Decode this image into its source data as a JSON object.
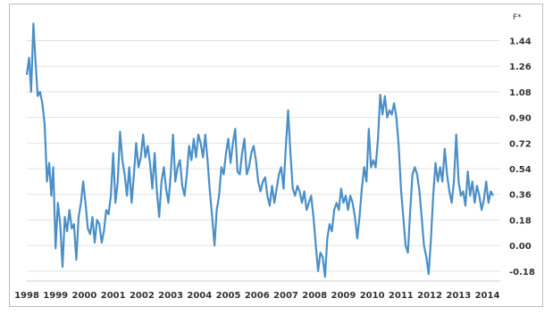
{
  "chart_data": {
    "type": "line",
    "ylabel": "F*",
    "ylim": [
      -0.25,
      1.6
    ],
    "yticks": [
      -0.18,
      0.0,
      0.18,
      0.36,
      0.54,
      0.72,
      0.9,
      1.08,
      1.26,
      1.44
    ],
    "ytick_labels": [
      "-0.18",
      "0.00",
      "0.18",
      "0.36",
      "0.54",
      "0.72",
      "0.90",
      "1.08",
      "1.26",
      "1.44"
    ],
    "xlim": [
      1998,
      2014.45
    ],
    "xtick_labels": [
      "1998",
      "1999",
      "2000",
      "2001",
      "2002",
      "2003",
      "2004",
      "2005",
      "2006",
      "2007",
      "2008",
      "2009",
      "2010",
      "2011",
      "2012",
      "2013",
      "2014"
    ],
    "grid": "horizontal",
    "line_color": "#4a8fc7",
    "series": [
      {
        "points": [
          [
            1998.0,
            1.2
          ],
          [
            1998.08,
            1.32
          ],
          [
            1998.15,
            1.08
          ],
          [
            1998.23,
            1.56
          ],
          [
            1998.3,
            1.3
          ],
          [
            1998.38,
            1.05
          ],
          [
            1998.46,
            1.08
          ],
          [
            1998.54,
            1.0
          ],
          [
            1998.62,
            0.85
          ],
          [
            1998.7,
            0.45
          ],
          [
            1998.78,
            0.58
          ],
          [
            1998.85,
            0.35
          ],
          [
            1998.92,
            0.55
          ],
          [
            1999.0,
            -0.02
          ],
          [
            1999.08,
            0.3
          ],
          [
            1999.16,
            0.15
          ],
          [
            1999.24,
            -0.15
          ],
          [
            1999.32,
            0.2
          ],
          [
            1999.4,
            0.1
          ],
          [
            1999.48,
            0.25
          ],
          [
            1999.56,
            0.12
          ],
          [
            1999.64,
            0.15
          ],
          [
            1999.72,
            -0.1
          ],
          [
            1999.8,
            0.2
          ],
          [
            1999.88,
            0.3
          ],
          [
            1999.96,
            0.45
          ],
          [
            2000.04,
            0.3
          ],
          [
            2000.12,
            0.12
          ],
          [
            2000.2,
            0.08
          ],
          [
            2000.28,
            0.2
          ],
          [
            2000.36,
            0.02
          ],
          [
            2000.44,
            0.18
          ],
          [
            2000.52,
            0.15
          ],
          [
            2000.6,
            0.02
          ],
          [
            2000.68,
            0.1
          ],
          [
            2000.76,
            0.25
          ],
          [
            2000.84,
            0.22
          ],
          [
            2000.92,
            0.35
          ],
          [
            2001.0,
            0.65
          ],
          [
            2001.08,
            0.3
          ],
          [
            2001.16,
            0.45
          ],
          [
            2001.24,
            0.8
          ],
          [
            2001.32,
            0.6
          ],
          [
            2001.4,
            0.5
          ],
          [
            2001.48,
            0.35
          ],
          [
            2001.56,
            0.55
          ],
          [
            2001.64,
            0.3
          ],
          [
            2001.72,
            0.5
          ],
          [
            2001.8,
            0.72
          ],
          [
            2001.88,
            0.55
          ],
          [
            2001.96,
            0.62
          ],
          [
            2002.04,
            0.78
          ],
          [
            2002.12,
            0.62
          ],
          [
            2002.2,
            0.7
          ],
          [
            2002.28,
            0.58
          ],
          [
            2002.36,
            0.4
          ],
          [
            2002.44,
            0.65
          ],
          [
            2002.52,
            0.38
          ],
          [
            2002.6,
            0.2
          ],
          [
            2002.68,
            0.45
          ],
          [
            2002.76,
            0.55
          ],
          [
            2002.84,
            0.4
          ],
          [
            2002.92,
            0.3
          ],
          [
            2003.0,
            0.5
          ],
          [
            2003.08,
            0.78
          ],
          [
            2003.16,
            0.45
          ],
          [
            2003.24,
            0.55
          ],
          [
            2003.32,
            0.6
          ],
          [
            2003.4,
            0.42
          ],
          [
            2003.48,
            0.35
          ],
          [
            2003.56,
            0.5
          ],
          [
            2003.64,
            0.7
          ],
          [
            2003.72,
            0.6
          ],
          [
            2003.8,
            0.75
          ],
          [
            2003.88,
            0.62
          ],
          [
            2003.96,
            0.78
          ],
          [
            2004.04,
            0.72
          ],
          [
            2004.12,
            0.62
          ],
          [
            2004.2,
            0.78
          ],
          [
            2004.28,
            0.6
          ],
          [
            2004.36,
            0.38
          ],
          [
            2004.44,
            0.2
          ],
          [
            2004.52,
            0.0
          ],
          [
            2004.6,
            0.25
          ],
          [
            2004.68,
            0.35
          ],
          [
            2004.76,
            0.55
          ],
          [
            2004.84,
            0.5
          ],
          [
            2004.92,
            0.65
          ],
          [
            2005.0,
            0.75
          ],
          [
            2005.08,
            0.58
          ],
          [
            2005.16,
            0.72
          ],
          [
            2005.24,
            0.82
          ],
          [
            2005.32,
            0.52
          ],
          [
            2005.4,
            0.5
          ],
          [
            2005.48,
            0.65
          ],
          [
            2005.56,
            0.75
          ],
          [
            2005.64,
            0.5
          ],
          [
            2005.72,
            0.55
          ],
          [
            2005.8,
            0.65
          ],
          [
            2005.88,
            0.7
          ],
          [
            2005.96,
            0.6
          ],
          [
            2006.04,
            0.45
          ],
          [
            2006.12,
            0.38
          ],
          [
            2006.2,
            0.45
          ],
          [
            2006.28,
            0.48
          ],
          [
            2006.36,
            0.35
          ],
          [
            2006.44,
            0.28
          ],
          [
            2006.52,
            0.42
          ],
          [
            2006.6,
            0.3
          ],
          [
            2006.68,
            0.4
          ],
          [
            2006.76,
            0.5
          ],
          [
            2006.84,
            0.55
          ],
          [
            2006.92,
            0.4
          ],
          [
            2007.0,
            0.7
          ],
          [
            2007.08,
            0.95
          ],
          [
            2007.16,
            0.65
          ],
          [
            2007.24,
            0.4
          ],
          [
            2007.32,
            0.35
          ],
          [
            2007.4,
            0.42
          ],
          [
            2007.48,
            0.38
          ],
          [
            2007.56,
            0.3
          ],
          [
            2007.64,
            0.38
          ],
          [
            2007.72,
            0.25
          ],
          [
            2007.8,
            0.3
          ],
          [
            2007.88,
            0.35
          ],
          [
            2007.96,
            0.2
          ],
          [
            2008.04,
            0.0
          ],
          [
            2008.12,
            -0.18
          ],
          [
            2008.2,
            -0.05
          ],
          [
            2008.28,
            -0.08
          ],
          [
            2008.36,
            -0.22
          ],
          [
            2008.44,
            0.05
          ],
          [
            2008.52,
            0.15
          ],
          [
            2008.6,
            0.1
          ],
          [
            2008.68,
            0.25
          ],
          [
            2008.76,
            0.3
          ],
          [
            2008.84,
            0.25
          ],
          [
            2008.92,
            0.4
          ],
          [
            2009.0,
            0.3
          ],
          [
            2009.08,
            0.35
          ],
          [
            2009.16,
            0.25
          ],
          [
            2009.24,
            0.35
          ],
          [
            2009.32,
            0.3
          ],
          [
            2009.4,
            0.2
          ],
          [
            2009.48,
            0.05
          ],
          [
            2009.56,
            0.2
          ],
          [
            2009.64,
            0.4
          ],
          [
            2009.72,
            0.55
          ],
          [
            2009.8,
            0.45
          ],
          [
            2009.88,
            0.82
          ],
          [
            2009.96,
            0.55
          ],
          [
            2010.04,
            0.6
          ],
          [
            2010.12,
            0.55
          ],
          [
            2010.2,
            0.75
          ],
          [
            2010.28,
            1.06
          ],
          [
            2010.36,
            0.92
          ],
          [
            2010.44,
            1.05
          ],
          [
            2010.52,
            0.9
          ],
          [
            2010.6,
            0.95
          ],
          [
            2010.68,
            0.92
          ],
          [
            2010.76,
            1.0
          ],
          [
            2010.84,
            0.9
          ],
          [
            2010.92,
            0.7
          ],
          [
            2011.0,
            0.4
          ],
          [
            2011.08,
            0.2
          ],
          [
            2011.16,
            0.0
          ],
          [
            2011.24,
            -0.05
          ],
          [
            2011.32,
            0.25
          ],
          [
            2011.4,
            0.5
          ],
          [
            2011.48,
            0.55
          ],
          [
            2011.56,
            0.5
          ],
          [
            2011.64,
            0.38
          ],
          [
            2011.72,
            0.2
          ],
          [
            2011.8,
            0.0
          ],
          [
            2011.88,
            -0.08
          ],
          [
            2011.96,
            -0.2
          ],
          [
            2012.04,
            0.05
          ],
          [
            2012.12,
            0.35
          ],
          [
            2012.2,
            0.58
          ],
          [
            2012.28,
            0.45
          ],
          [
            2012.36,
            0.55
          ],
          [
            2012.44,
            0.45
          ],
          [
            2012.52,
            0.68
          ],
          [
            2012.6,
            0.5
          ],
          [
            2012.68,
            0.38
          ],
          [
            2012.76,
            0.3
          ],
          [
            2012.84,
            0.45
          ],
          [
            2012.92,
            0.78
          ],
          [
            2013.0,
            0.45
          ],
          [
            2013.08,
            0.35
          ],
          [
            2013.16,
            0.38
          ],
          [
            2013.24,
            0.28
          ],
          [
            2013.32,
            0.52
          ],
          [
            2013.4,
            0.35
          ],
          [
            2013.48,
            0.45
          ],
          [
            2013.56,
            0.3
          ],
          [
            2013.64,
            0.42
          ],
          [
            2013.72,
            0.35
          ],
          [
            2013.8,
            0.25
          ],
          [
            2013.88,
            0.32
          ],
          [
            2013.96,
            0.45
          ],
          [
            2014.04,
            0.3
          ],
          [
            2014.12,
            0.38
          ],
          [
            2014.2,
            0.35
          ]
        ]
      }
    ]
  }
}
